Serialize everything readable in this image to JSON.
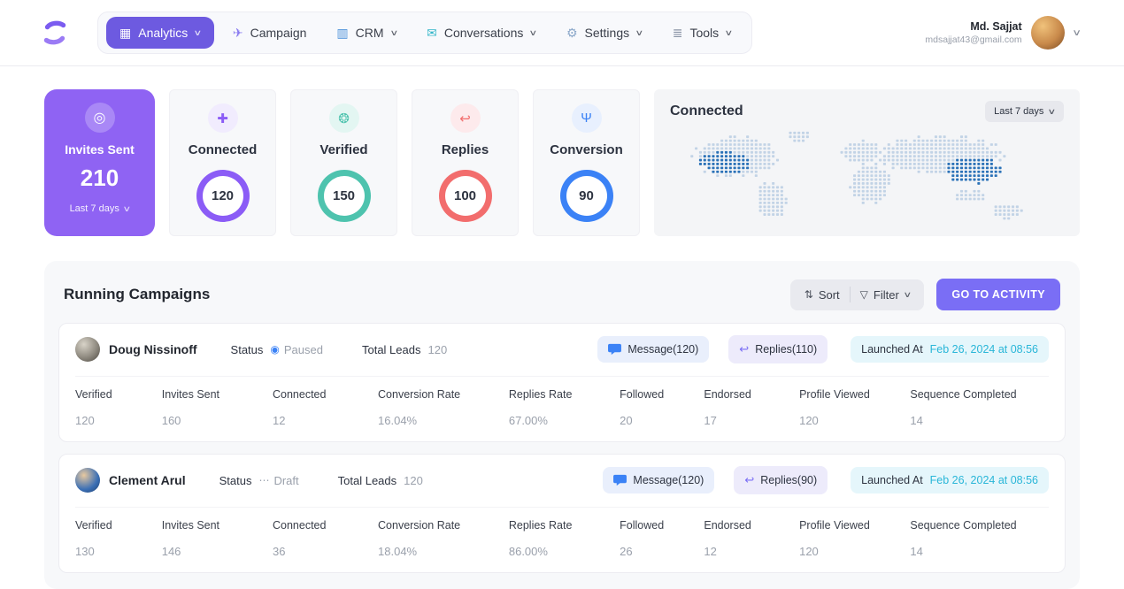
{
  "icons": {
    "chevron_down": "∨",
    "target": "◎",
    "sort": "⇅",
    "filter": "▽",
    "paused": "◉",
    "draft": "⋯",
    "reply": "↩"
  },
  "colors": {
    "accent_purple": "#6d5ae0",
    "cta_purple": "#7a6ef5",
    "paused_blue": "#3b82f6",
    "draft_gray": "#9ca3af",
    "launched_cyan": "#29b6d8",
    "map_dot_light": "#c2d3e6",
    "map_dot_dark": "#2b72b8"
  },
  "header": {
    "nav": [
      {
        "label": "Analytics",
        "icon": "grid-icon",
        "icon_color": "#ffffff",
        "active": true,
        "chevron": true
      },
      {
        "label": "Campaign",
        "icon": "paper-plane-icon",
        "icon_color": "#8a7cf0",
        "active": false,
        "chevron": false
      },
      {
        "label": "CRM",
        "icon": "monitor-icon",
        "icon_color": "#4a90d9",
        "active": false,
        "chevron": true
      },
      {
        "label": "Conversations",
        "icon": "chat-icon",
        "icon_color": "#35b7c9",
        "active": false,
        "chevron": true
      },
      {
        "label": "Settings",
        "icon": "gear-icon",
        "icon_color": "#8aa7c9",
        "active": false,
        "chevron": true
      },
      {
        "label": "Tools",
        "icon": "clipboard-icon",
        "icon_color": "#8a94a6",
        "active": false,
        "chevron": true
      }
    ],
    "user": {
      "name": "Md. Sajjat",
      "email": "mdsajjat43@gmail.com"
    }
  },
  "stats": {
    "invites": {
      "label": "Invites Sent",
      "value": "210",
      "period": "Last 7 days"
    },
    "rings": [
      {
        "label": "Connected",
        "value": "120",
        "icon": "link-icon",
        "color": "#8b5cf6",
        "tint": "#f1ecfe"
      },
      {
        "label": "Verified",
        "value": "150",
        "icon": "badge-check-icon",
        "color": "#4ec3ae",
        "tint": "#e3f6f2"
      },
      {
        "label": "Replies",
        "value": "100",
        "icon": "reply-icon",
        "color": "#f26d6d",
        "tint": "#fdeaec"
      },
      {
        "label": "Conversion",
        "value": "90",
        "icon": "trident-icon",
        "color": "#3b82f6",
        "tint": "#e8f0fe"
      }
    ]
  },
  "map_panel": {
    "title": "Connected",
    "period": "Last 7 days"
  },
  "campaigns": {
    "title": "Running Campaigns",
    "sort_label": "Sort",
    "filter_label": "Filter",
    "cta": "GO TO ACTIVITY",
    "status_label": "Status",
    "total_leads_label": "Total Leads",
    "launched_label": "Launched At",
    "columns": [
      "Verified",
      "Invites Sent",
      "Connected",
      "Conversion Rate",
      "Replies Rate",
      "Followed",
      "Endorsed",
      "Profile Viewed",
      "Sequence Completed"
    ],
    "rows": [
      {
        "name": "Doug Nissinoff",
        "status": "Paused",
        "total_leads": "120",
        "message": "Message(120)",
        "replies": "Replies(110)",
        "launched": "Feb 26, 2024 at 08:56",
        "values": [
          "120",
          "160",
          "12",
          "16.04%",
          "67.00%",
          "20",
          "17",
          "120",
          "14"
        ]
      },
      {
        "name": "Clement Arul",
        "status": "Draft",
        "total_leads": "120",
        "message": "Message(120)",
        "replies": "Replies(90)",
        "launched": "Feb 26, 2024 at 08:56",
        "values": [
          "130",
          "146",
          "36",
          "18.04%",
          "86.00%",
          "26",
          "12",
          "120",
          "14"
        ]
      }
    ]
  }
}
